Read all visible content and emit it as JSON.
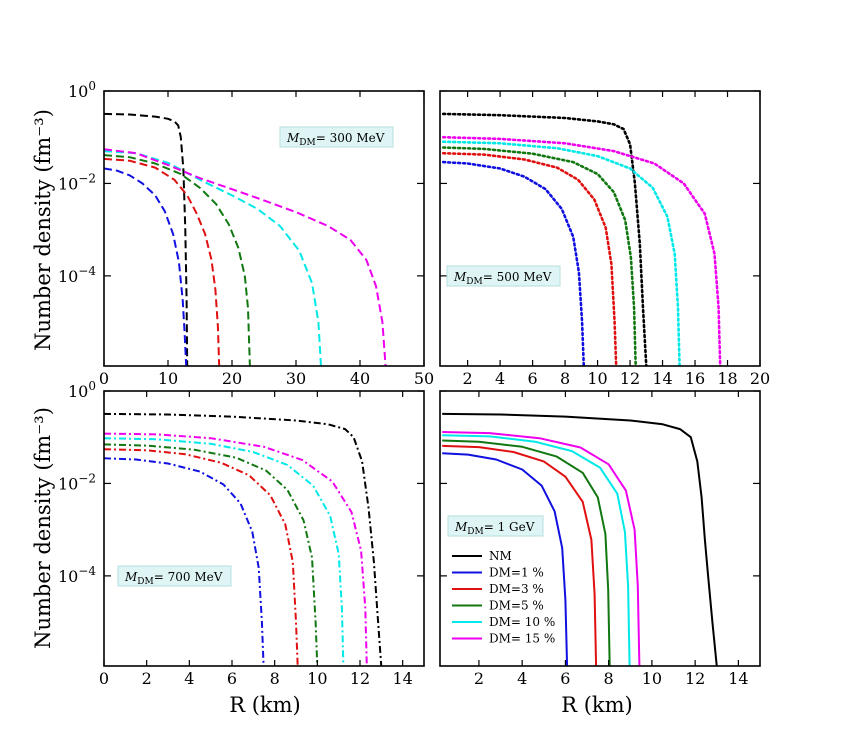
{
  "figure": {
    "ylabel": "Number density (fm⁻³)",
    "xlabel": "R (km)"
  },
  "chart_data": [
    {
      "type": "line",
      "panel": "top-left",
      "annotation": "M_DM= 300 MeV",
      "annotation_position": "upper-right",
      "line_style": "dashed",
      "xlim": [
        0,
        50
      ],
      "x_ticks": [
        0,
        10,
        20,
        30,
        40,
        50
      ],
      "ylim": [
        -5.95,
        0
      ],
      "y_scale": "log",
      "y_ticks": [
        "10^0",
        "10^-2",
        "10^-4"
      ],
      "series": [
        {
          "name": "NM",
          "color": "#000000",
          "x": [
            0,
            4,
            8,
            10,
            11,
            11.6,
            12,
            12.4,
            12.7,
            12.9,
            13.0
          ],
          "y": [
            0.32,
            0.31,
            0.28,
            0.25,
            0.22,
            0.18,
            0.1,
            0.02,
            0.001,
            3e-05,
            1.1e-06
          ]
        },
        {
          "name": "DM=1 %",
          "color": "#1010e0",
          "x": [
            0,
            2,
            4,
            6,
            8,
            9.5,
            10.8,
            11.7,
            12.3,
            12.6,
            12.85
          ],
          "y": [
            0.021,
            0.019,
            0.015,
            0.01,
            0.0055,
            0.0025,
            0.0008,
            0.0002,
            3e-05,
            6e-06,
            1.1e-06
          ]
        },
        {
          "name": "DM=3 %",
          "color": "#e01010",
          "x": [
            0,
            4,
            8,
            11,
            13,
            14.5,
            15.8,
            16.8,
            17.4,
            17.8,
            18
          ],
          "y": [
            0.034,
            0.031,
            0.022,
            0.012,
            0.0055,
            0.0022,
            0.0008,
            0.00022,
            5e-05,
            8e-06,
            1.1e-06
          ]
        },
        {
          "name": "DM=5 %",
          "color": "#117711",
          "x": [
            0,
            4,
            8,
            12,
            15,
            17.5,
            19.5,
            21,
            22,
            22.5,
            22.8
          ],
          "y": [
            0.041,
            0.037,
            0.027,
            0.016,
            0.008,
            0.0036,
            0.0013,
            0.0004,
            0.0001,
            2e-05,
            1.1e-06
          ]
        },
        {
          "name": "DM= 10 %",
          "color": "#00e8e8",
          "x": [
            0,
            5,
            10,
            15,
            20,
            24,
            27.5,
            30.5,
            32.5,
            33.5,
            33.9
          ],
          "y": [
            0.05,
            0.045,
            0.028,
            0.012,
            0.0055,
            0.0028,
            0.0012,
            0.00035,
            7e-05,
            1e-05,
            1.1e-06
          ]
        },
        {
          "name": "DM= 15 %",
          "color": "#ee00ee",
          "x": [
            0,
            5,
            10,
            15,
            20,
            25,
            30,
            35,
            38.5,
            41,
            42.5,
            43.5,
            44
          ],
          "y": [
            0.055,
            0.045,
            0.025,
            0.013,
            0.0075,
            0.0043,
            0.0024,
            0.0012,
            0.0006,
            0.00022,
            6e-05,
            1e-05,
            1.1e-06
          ]
        }
      ]
    },
    {
      "type": "line",
      "panel": "top-right",
      "annotation": "M_DM= 500 MeV",
      "annotation_position": "lower-left",
      "line_style": "dotted",
      "xlim": [
        0.3,
        20
      ],
      "x_ticks": [
        2,
        4,
        6,
        8,
        10,
        12,
        14,
        16,
        18,
        20
      ],
      "ylim": [
        -5.95,
        0
      ],
      "y_scale": "log",
      "y_ticks": [
        "10^0",
        "10^-2",
        "10^-4"
      ],
      "series": [
        {
          "name": "NM",
          "color": "#000000",
          "x": [
            0.5,
            4,
            8,
            10,
            11,
            11.6,
            12,
            12.3,
            12.6,
            12.8,
            13
          ],
          "y": [
            0.32,
            0.3,
            0.26,
            0.22,
            0.19,
            0.15,
            0.07,
            0.01,
            0.0005,
            2e-05,
            1.1e-06
          ]
        },
        {
          "name": "DM=1 %",
          "color": "#1010e0",
          "x": [
            0.5,
            2,
            4,
            5.5,
            6.8,
            7.8,
            8.5,
            8.85,
            9.05,
            9.15
          ],
          "y": [
            0.029,
            0.027,
            0.021,
            0.014,
            0.0075,
            0.0028,
            0.0007,
            0.00012,
            1e-05,
            1.1e-06
          ]
        },
        {
          "name": "DM=3 %",
          "color": "#e01010",
          "x": [
            0.5,
            3,
            5.5,
            7.5,
            8.8,
            9.8,
            10.5,
            10.85,
            11.05,
            11.15
          ],
          "y": [
            0.045,
            0.042,
            0.033,
            0.022,
            0.012,
            0.0045,
            0.0011,
            0.00018,
            1e-05,
            1.1e-06
          ]
        },
        {
          "name": "DM=5 %",
          "color": "#117711",
          "x": [
            0.5,
            3,
            6,
            8.5,
            10,
            11,
            11.7,
            12.05,
            12.25,
            12.35
          ],
          "y": [
            0.06,
            0.056,
            0.044,
            0.029,
            0.016,
            0.0065,
            0.0016,
            0.00025,
            2e-05,
            1.1e-06
          ]
        },
        {
          "name": "DM= 10 %",
          "color": "#00e8e8",
          "x": [
            0.5,
            4,
            7.5,
            10,
            12,
            13.4,
            14.3,
            14.75,
            14.95,
            15.05
          ],
          "y": [
            0.08,
            0.074,
            0.058,
            0.039,
            0.021,
            0.008,
            0.0019,
            0.0003,
            2e-05,
            1.1e-06
          ]
        },
        {
          "name": "DM= 15 %",
          "color": "#ee00ee",
          "x": [
            0.5,
            4,
            8,
            11,
            13.5,
            15.3,
            16.6,
            17.2,
            17.45,
            17.55
          ],
          "y": [
            0.1,
            0.092,
            0.074,
            0.05,
            0.027,
            0.01,
            0.0022,
            0.0003,
            2e-05,
            1.1e-06
          ]
        }
      ]
    },
    {
      "type": "line",
      "panel": "bottom-left",
      "annotation": "M_DM= 700 MeV",
      "annotation_position": "lower-left",
      "line_style": "dash-dot",
      "xlim": [
        0,
        15
      ],
      "x_ticks": [
        0,
        2,
        4,
        6,
        8,
        10,
        12,
        14
      ],
      "ylim": [
        -5.95,
        0
      ],
      "y_scale": "log",
      "y_ticks": [
        "10^0",
        "10^-2",
        "10^-4"
      ],
      "series": [
        {
          "name": "NM",
          "color": "#000000",
          "x": [
            0,
            3,
            6,
            9,
            10.5,
            11.3,
            11.7,
            12.1,
            12.4,
            12.65,
            12.85,
            13
          ],
          "y": [
            0.32,
            0.31,
            0.28,
            0.23,
            0.19,
            0.15,
            0.1,
            0.03,
            0.003,
            0.0002,
            1e-05,
            1.1e-06
          ]
        },
        {
          "name": "DM=1 %",
          "color": "#1010e0",
          "x": [
            0,
            1.5,
            3,
            4.5,
            5.6,
            6.4,
            6.95,
            7.25,
            7.4,
            7.48
          ],
          "y": [
            0.035,
            0.033,
            0.027,
            0.018,
            0.0095,
            0.0037,
            0.0009,
            0.00015,
            1e-05,
            1.1e-06
          ]
        },
        {
          "name": "DM=3 %",
          "color": "#e01010",
          "x": [
            0,
            2,
            3.8,
            5.5,
            6.8,
            7.8,
            8.5,
            8.85,
            9.0,
            9.08
          ],
          "y": [
            0.055,
            0.052,
            0.043,
            0.028,
            0.015,
            0.0055,
            0.0013,
            0.0002,
            1e-05,
            1.1e-06
          ]
        },
        {
          "name": "DM=5 %",
          "color": "#117711",
          "x": [
            0,
            2,
            4.2,
            6.2,
            7.6,
            8.6,
            9.35,
            9.75,
            9.92,
            10.0
          ],
          "y": [
            0.07,
            0.066,
            0.054,
            0.036,
            0.019,
            0.0072,
            0.0016,
            0.00025,
            1e-05,
            1.1e-06
          ]
        },
        {
          "name": "DM= 10 %",
          "color": "#00e8e8",
          "x": [
            0,
            2.5,
            5,
            7,
            8.6,
            9.8,
            10.6,
            11.0,
            11.15,
            11.22
          ],
          "y": [
            0.095,
            0.09,
            0.072,
            0.048,
            0.025,
            0.009,
            0.002,
            0.0003,
            2e-05,
            1.1e-06
          ]
        },
        {
          "name": "DM= 15 %",
          "color": "#ee00ee",
          "x": [
            0,
            2.5,
            5,
            7.5,
            9.3,
            10.7,
            11.6,
            12.05,
            12.25,
            12.32
          ],
          "y": [
            0.12,
            0.115,
            0.095,
            0.062,
            0.032,
            0.011,
            0.0024,
            0.00035,
            2e-05,
            1.1e-06
          ]
        }
      ]
    },
    {
      "type": "line",
      "panel": "bottom-right",
      "annotation": "M_DM= 1 GeV",
      "annotation_position": "upper-left",
      "line_style": "solid",
      "xlim": [
        0.2,
        15
      ],
      "x_ticks": [
        2,
        4,
        6,
        8,
        10,
        12,
        14
      ],
      "ylim": [
        -5.95,
        0
      ],
      "y_scale": "log",
      "y_ticks": [
        "10^0",
        "10^-2",
        "10^-4"
      ],
      "legend": "lower-left",
      "series": [
        {
          "name": "NM",
          "color": "#000000",
          "x": [
            0.3,
            3,
            6,
            9,
            10.5,
            11.3,
            11.8,
            12.1,
            12.3,
            12.45,
            12.6,
            12.8,
            13.0
          ],
          "y": [
            0.32,
            0.31,
            0.28,
            0.23,
            0.19,
            0.15,
            0.1,
            0.03,
            0.005,
            0.0006,
            0.0001,
            1e-05,
            1.1e-06
          ]
        },
        {
          "name": "DM=1 %",
          "color": "#1010e0",
          "x": [
            0.3,
            1.5,
            2.8,
            4.0,
            4.9,
            5.5,
            5.85,
            6.0,
            6.08
          ],
          "y": [
            0.045,
            0.042,
            0.033,
            0.02,
            0.009,
            0.0025,
            0.0004,
            3e-05,
            1.1e-06
          ]
        },
        {
          "name": "DM=3 %",
          "color": "#e01010",
          "x": [
            0.3,
            2,
            3.6,
            5.0,
            6.0,
            6.8,
            7.2,
            7.35,
            7.42
          ],
          "y": [
            0.065,
            0.061,
            0.048,
            0.03,
            0.014,
            0.004,
            0.0006,
            4e-05,
            1.1e-06
          ]
        },
        {
          "name": "DM=5 %",
          "color": "#117711",
          "x": [
            0.3,
            2,
            4,
            5.6,
            6.8,
            7.5,
            7.85,
            7.98,
            8.05
          ],
          "y": [
            0.085,
            0.08,
            0.062,
            0.038,
            0.017,
            0.005,
            0.0008,
            5e-05,
            1.1e-06
          ]
        },
        {
          "name": "DM= 10 %",
          "color": "#00e8e8",
          "x": [
            0.3,
            2.5,
            4.6,
            6.3,
            7.6,
            8.4,
            8.75,
            8.9,
            8.97
          ],
          "y": [
            0.11,
            0.104,
            0.08,
            0.05,
            0.022,
            0.006,
            0.0009,
            6e-05,
            1.1e-06
          ]
        },
        {
          "name": "DM= 15 %",
          "color": "#ee00ee",
          "x": [
            0.3,
            2.5,
            4.8,
            6.7,
            8.0,
            8.8,
            9.2,
            9.35,
            9.42
          ],
          "y": [
            0.13,
            0.123,
            0.095,
            0.06,
            0.026,
            0.007,
            0.001,
            6e-05,
            1.1e-06
          ]
        }
      ]
    }
  ]
}
